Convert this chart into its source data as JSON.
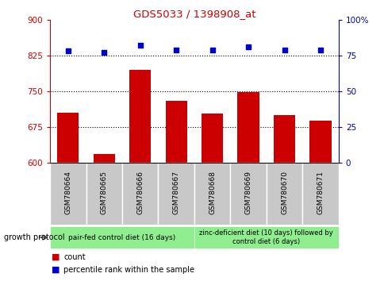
{
  "title": "GDS5033 / 1398908_at",
  "samples": [
    "GSM780664",
    "GSM780665",
    "GSM780666",
    "GSM780667",
    "GSM780668",
    "GSM780669",
    "GSM780670",
    "GSM780671"
  ],
  "counts": [
    705,
    618,
    795,
    730,
    703,
    748,
    700,
    688
  ],
  "percentiles": [
    78,
    77,
    82,
    79,
    79,
    81,
    79,
    79
  ],
  "bar_color": "#cc0000",
  "dot_color": "#0000cc",
  "ylim_left": [
    600,
    900
  ],
  "ylim_right": [
    0,
    100
  ],
  "yticks_left": [
    600,
    675,
    750,
    825,
    900
  ],
  "yticks_right": [
    0,
    25,
    50,
    75,
    100
  ],
  "ytick_labels_right": [
    "0",
    "25",
    "50",
    "75",
    "100%"
  ],
  "hlines": [
    675,
    750,
    825
  ],
  "group1_label": "pair-fed control diet (16 days)",
  "group2_label": "zinc-deficient diet (10 days) followed by\ncontrol diet (6 days)",
  "group1_samples": [
    0,
    1,
    2,
    3
  ],
  "group2_samples": [
    4,
    5,
    6,
    7
  ],
  "group_protocol_label": "growth protocol",
  "legend_count": "count",
  "legend_percentile": "percentile rank within the sample",
  "group1_color": "#90ee90",
  "group2_color": "#90ee90",
  "label_area_color": "#c8c8c8",
  "title_color": "#cc0000",
  "left_axis_color": "#cc0000",
  "right_axis_color": "#0000cc",
  "bg_color": "#ffffff"
}
